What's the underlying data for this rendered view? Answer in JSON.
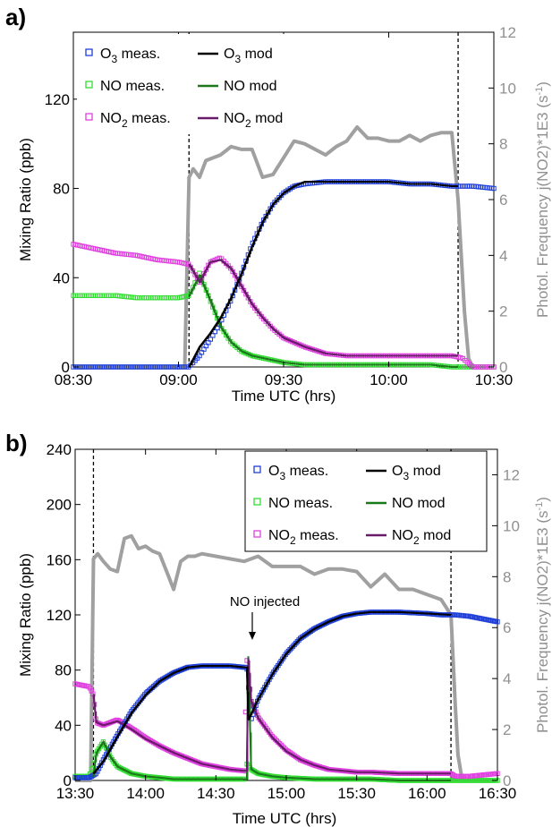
{
  "panels": [
    {
      "letter": "a)",
      "x_label": "Time UTC (hrs)",
      "y_label": "Mixing Ratio (ppb)",
      "y2_label": "Photol. Frequency j(NO2)*1E3 (s-1)",
      "legend": [
        {
          "meas": "O3 meas.",
          "mod": "O3 mod",
          "sub_meas": "3",
          "sub_mod": "3"
        },
        {
          "meas": "NO meas.",
          "mod": "NO mod"
        },
        {
          "meas": "NO2 meas.",
          "mod": "NO2 mod",
          "sub_meas": "2",
          "sub_mod": "2"
        }
      ],
      "legend_position": "top-left"
    },
    {
      "letter": "b)",
      "x_label": "Time UTC (hrs)",
      "y_label": "Mixing Ratio (ppb)",
      "y2_label": "Photol. Frequency j(NO2)*1E3 (s-1)",
      "annotation": "NO injected",
      "legend": [
        {
          "meas": "O3 meas.",
          "mod": "O3 mod",
          "sub_meas": "3",
          "sub_mod": "3"
        },
        {
          "meas": "NO meas.",
          "mod": "NO mod"
        },
        {
          "meas": "NO2 meas.",
          "mod": "NO2 mod",
          "sub_meas": "2",
          "sub_mod": "2"
        }
      ],
      "legend_position": "top-right"
    }
  ],
  "colors": {
    "o3_meas": "#1f3fd8",
    "o3_mod": "#000000",
    "no_meas": "#33dd33",
    "no_mod": "#1a7a1a",
    "no2_meas": "#e040e0",
    "no2_mod": "#6a1a6a",
    "jno2": "#a0a0a0",
    "y2_axis": "#909090"
  },
  "chart_data": [
    {
      "type": "line",
      "panel": "a",
      "xlabel": "Time UTC (hrs)",
      "ylabel": "Mixing Ratio (ppb)",
      "y2label": "Photol. Frequency j(NO2)*1E3 (s-1)",
      "x_ticks": [
        "08:30",
        "09:00",
        "09:30",
        "10:00",
        "10:30"
      ],
      "x_range_hours": [
        8.5,
        10.5
      ],
      "ylim": [
        0,
        150
      ],
      "y_ticks": [
        0,
        40,
        80,
        120
      ],
      "y2lim": [
        0,
        12
      ],
      "y2_ticks": [
        0,
        2,
        4,
        6,
        8,
        10,
        12
      ],
      "vlines_hours": [
        9.05,
        10.33
      ],
      "series": [
        {
          "name": "O3 meas.",
          "axis": "left",
          "marker": "square",
          "x": [
            8.5,
            8.6,
            8.7,
            8.8,
            8.9,
            9.0,
            9.05,
            9.1,
            9.15,
            9.2,
            9.25,
            9.3,
            9.35,
            9.4,
            9.45,
            9.5,
            9.55,
            9.6,
            9.7,
            9.8,
            9.9,
            10.0,
            10.1,
            10.2,
            10.3,
            10.35,
            10.4,
            10.5
          ],
          "y": [
            0,
            0,
            0,
            0,
            0,
            0,
            0,
            5,
            12,
            20,
            30,
            42,
            55,
            65,
            73,
            78,
            81,
            82,
            83,
            83,
            83,
            83,
            82,
            82,
            81,
            81,
            81,
            80
          ]
        },
        {
          "name": "O3 mod",
          "axis": "left",
          "x": [
            9.05,
            9.1,
            9.15,
            9.2,
            9.25,
            9.3,
            9.35,
            9.4,
            9.45,
            9.5,
            9.55,
            9.6,
            9.7,
            9.8,
            9.9,
            10.0,
            10.1,
            10.2,
            10.3,
            10.33
          ],
          "y": [
            0,
            9,
            15,
            22,
            31,
            42,
            54,
            65,
            73,
            78,
            81,
            83,
            83,
            83,
            83,
            83,
            82,
            82,
            81,
            81
          ]
        },
        {
          "name": "NO meas.",
          "axis": "left",
          "marker": "square",
          "x": [
            8.5,
            8.6,
            8.7,
            8.8,
            8.9,
            9.0,
            9.05,
            9.1,
            9.15,
            9.2,
            9.25,
            9.3,
            9.35,
            9.4,
            9.45,
            9.5,
            9.6,
            9.7,
            9.8,
            9.9,
            10.0,
            10.1,
            10.2,
            10.3,
            10.35,
            10.4,
            10.5
          ],
          "y": [
            32,
            32,
            32,
            31,
            31,
            31,
            32,
            42,
            30,
            18,
            11,
            7,
            5,
            4,
            3,
            2,
            1,
            1,
            1,
            1,
            1,
            1,
            1,
            0,
            0,
            0,
            0
          ]
        },
        {
          "name": "NO mod",
          "axis": "left",
          "x": [
            9.05,
            9.1,
            9.15,
            9.2,
            9.25,
            9.3,
            9.35,
            9.4,
            9.45,
            9.5,
            9.6,
            9.7,
            9.8,
            9.9,
            10.0,
            10.1,
            10.2,
            10.3,
            10.33
          ],
          "y": [
            32,
            41,
            30,
            18,
            11,
            7,
            5,
            4,
            3,
            2,
            1,
            1,
            1,
            1,
            1,
            1,
            1,
            0,
            0
          ]
        },
        {
          "name": "NO2 meas.",
          "axis": "left",
          "marker": "square",
          "x": [
            8.5,
            8.6,
            8.7,
            8.8,
            8.9,
            9.0,
            9.05,
            9.1,
            9.15,
            9.2,
            9.25,
            9.3,
            9.35,
            9.4,
            9.45,
            9.5,
            9.6,
            9.7,
            9.8,
            9.9,
            10.0,
            10.1,
            10.2,
            10.3,
            10.35,
            10.4,
            10.5
          ],
          "y": [
            55,
            53,
            51,
            50,
            48,
            47,
            46,
            38,
            47,
            49,
            44,
            36,
            28,
            22,
            17,
            13,
            9,
            6,
            5,
            5,
            5,
            5,
            5,
            5,
            4,
            0,
            0
          ]
        },
        {
          "name": "NO2 mod",
          "axis": "left",
          "x": [
            9.05,
            9.1,
            9.15,
            9.2,
            9.25,
            9.3,
            9.35,
            9.4,
            9.45,
            9.5,
            9.6,
            9.7,
            9.8,
            9.9,
            10.0,
            10.1,
            10.2,
            10.3,
            10.33
          ],
          "y": [
            46,
            38,
            47,
            48,
            44,
            36,
            28,
            22,
            17,
            13,
            9,
            6,
            5,
            5,
            5,
            5,
            5,
            5,
            5
          ]
        },
        {
          "name": "j(NO2)",
          "axis": "right",
          "x": [
            8.5,
            9.03,
            9.05,
            9.07,
            9.1,
            9.13,
            9.2,
            9.25,
            9.3,
            9.35,
            9.4,
            9.45,
            9.5,
            9.55,
            9.6,
            9.7,
            9.75,
            9.8,
            9.85,
            9.9,
            9.95,
            10.0,
            10.05,
            10.1,
            10.15,
            10.2,
            10.25,
            10.3,
            10.33,
            10.36,
            10.38,
            10.4
          ],
          "y": [
            0,
            0,
            6.8,
            7.1,
            6.8,
            7.4,
            7.6,
            7.9,
            7.8,
            7.8,
            6.8,
            6.9,
            7.5,
            8.1,
            8.0,
            7.6,
            7.9,
            8.1,
            8.6,
            8.2,
            8.2,
            8.1,
            8.1,
            8.3,
            8.1,
            8.3,
            8.4,
            8.4,
            6.0,
            2.0,
            0.3,
            0
          ]
        }
      ]
    },
    {
      "type": "line",
      "panel": "b",
      "xlabel": "Time UTC (hrs)",
      "ylabel": "Mixing Ratio (ppb)",
      "y2label": "Photol. Frequency j(NO2)*1E3 (s-1)",
      "annotation": {
        "text": "NO injected",
        "x_hours": 14.72
      },
      "x_ticks": [
        "13:30",
        "14:00",
        "14:30",
        "15:00",
        "15:30",
        "16:00",
        "16:30"
      ],
      "x_range_hours": [
        13.5,
        16.5
      ],
      "ylim": [
        0,
        240
      ],
      "y_ticks": [
        0,
        40,
        80,
        120,
        160,
        200,
        240
      ],
      "y2lim": [
        0,
        13
      ],
      "y2_ticks": [
        0,
        2,
        4,
        6,
        8,
        10,
        12
      ],
      "vlines_hours": [
        13.63,
        16.17
      ],
      "series": [
        {
          "name": "O3 meas.",
          "axis": "left",
          "marker": "square",
          "x": [
            13.5,
            13.6,
            13.65,
            13.7,
            13.8,
            13.9,
            14.0,
            14.1,
            14.2,
            14.3,
            14.4,
            14.5,
            14.6,
            14.7,
            14.72,
            14.75,
            14.8,
            14.9,
            15.0,
            15.1,
            15.2,
            15.3,
            15.4,
            15.5,
            15.6,
            15.8,
            16.0,
            16.1,
            16.17,
            16.2,
            16.3,
            16.4,
            16.5
          ],
          "y": [
            2,
            2,
            5,
            15,
            33,
            50,
            63,
            72,
            78,
            82,
            83,
            83,
            83,
            82,
            82,
            44,
            59,
            77,
            92,
            103,
            110,
            115,
            119,
            121,
            122,
            122,
            121,
            120,
            120,
            120,
            119,
            117,
            115
          ]
        },
        {
          "name": "O3 mod",
          "axis": "left",
          "x": [
            13.63,
            13.7,
            13.8,
            13.9,
            14.0,
            14.1,
            14.2,
            14.3,
            14.4,
            14.5,
            14.6,
            14.7,
            14.72,
            14.73,
            14.75,
            14.8,
            14.9,
            15.0,
            15.1,
            15.2,
            15.3,
            15.4,
            15.5,
            15.6,
            15.8,
            16.0,
            16.17
          ],
          "y": [
            5,
            14,
            32,
            49,
            62,
            72,
            78,
            82,
            83,
            83,
            83,
            82,
            82,
            44,
            48,
            59,
            77,
            92,
            103,
            110,
            115,
            119,
            121,
            122,
            122,
            121,
            120
          ]
        },
        {
          "name": "NO meas.",
          "axis": "left",
          "marker": "square",
          "x": [
            13.5,
            13.6,
            13.65,
            13.7,
            13.75,
            13.8,
            13.9,
            14.0,
            14.1,
            14.2,
            14.4,
            14.6,
            14.7,
            14.72,
            14.75,
            14.8,
            14.9,
            15.0,
            15.2,
            15.4,
            15.6,
            15.8,
            16.0,
            16.17,
            16.3,
            16.5
          ],
          "y": [
            3,
            3,
            20,
            28,
            17,
            10,
            5,
            3,
            2,
            1,
            1,
            1,
            1,
            12,
            8,
            5,
            3,
            2,
            1,
            1,
            1,
            0,
            0,
            0,
            0,
            0
          ]
        },
        {
          "name": "NO mod",
          "axis": "left",
          "x": [
            13.63,
            13.65,
            13.7,
            13.75,
            13.8,
            13.9,
            14.0,
            14.1,
            14.2,
            14.4,
            14.6,
            14.7,
            14.72,
            14.73,
            14.75,
            14.8,
            14.9,
            15.0,
            15.2,
            15.4,
            15.6,
            15.8,
            16.0,
            16.17
          ],
          "y": [
            3,
            20,
            28,
            17,
            10,
            5,
            3,
            2,
            1,
            1,
            1,
            1,
            1,
            90,
            8,
            5,
            3,
            2,
            1,
            1,
            1,
            0,
            0,
            0
          ]
        },
        {
          "name": "NO2 meas.",
          "axis": "left",
          "marker": "square",
          "x": [
            13.5,
            13.6,
            13.63,
            13.65,
            13.7,
            13.8,
            13.9,
            14.0,
            14.1,
            14.2,
            14.3,
            14.4,
            14.5,
            14.6,
            14.7,
            14.72,
            14.75,
            14.8,
            14.9,
            15.0,
            15.1,
            15.2,
            15.3,
            15.4,
            15.5,
            15.6,
            15.8,
            16.0,
            16.17,
            16.2,
            16.3,
            16.4,
            16.5
          ],
          "y": [
            70,
            68,
            62,
            42,
            40,
            44,
            38,
            31,
            25,
            20,
            16,
            12,
            10,
            8,
            7,
            88,
            58,
            46,
            32,
            22,
            15,
            11,
            8,
            7,
            6,
            6,
            5,
            5,
            5,
            3,
            3,
            4,
            5
          ]
        },
        {
          "name": "NO2 mod",
          "axis": "left",
          "x": [
            13.63,
            13.65,
            13.7,
            13.8,
            13.9,
            14.0,
            14.1,
            14.2,
            14.3,
            14.4,
            14.5,
            14.6,
            14.7,
            14.72,
            14.73,
            14.75,
            14.8,
            14.9,
            15.0,
            15.1,
            15.2,
            15.3,
            15.4,
            15.5,
            15.6,
            15.8,
            16.0,
            16.17
          ],
          "y": [
            62,
            42,
            40,
            43,
            37,
            30,
            25,
            20,
            16,
            12,
            10,
            8,
            7,
            7,
            88,
            58,
            45,
            31,
            21,
            15,
            11,
            8,
            7,
            6,
            6,
            5,
            5,
            5
          ]
        },
        {
          "name": "j(NO2)",
          "axis": "right",
          "x": [
            13.5,
            13.61,
            13.63,
            13.66,
            13.7,
            13.75,
            13.8,
            13.85,
            13.9,
            13.95,
            14.0,
            14.05,
            14.1,
            14.15,
            14.2,
            14.25,
            14.3,
            14.35,
            14.4,
            14.5,
            14.6,
            14.7,
            14.8,
            14.9,
            15.0,
            15.1,
            15.2,
            15.3,
            15.4,
            15.5,
            15.6,
            15.7,
            15.8,
            15.9,
            16.0,
            16.1,
            16.17,
            16.2,
            16.22,
            16.25
          ],
          "y": [
            0,
            0,
            8.7,
            8.9,
            8.6,
            8.3,
            8.2,
            9.5,
            9.6,
            9.1,
            9.2,
            9.0,
            8.9,
            8.2,
            7.5,
            8.6,
            8.8,
            8.8,
            8.9,
            8.8,
            8.7,
            8.6,
            8.8,
            8.4,
            8.4,
            8.4,
            8.1,
            8.3,
            8.3,
            8.2,
            7.6,
            8.1,
            7.5,
            7.5,
            7.3,
            7.1,
            6.5,
            3.0,
            1.0,
            0
          ]
        }
      ]
    }
  ]
}
